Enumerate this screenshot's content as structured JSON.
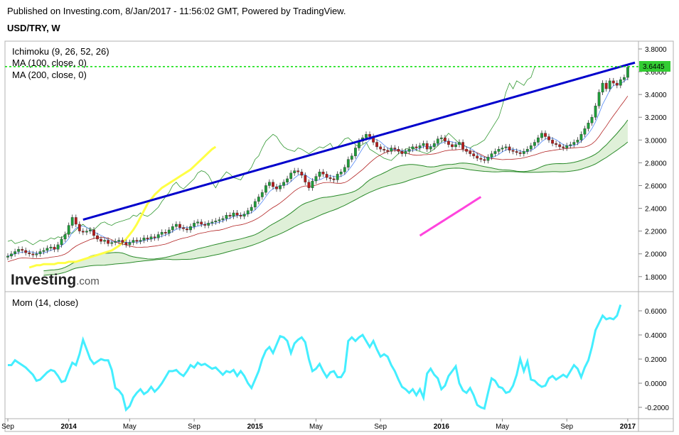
{
  "header": {
    "published": "Published on Investing.com, 8/Jan/2017 - 11:56:02 GMT, Powered by TradingView.",
    "symbol": "USD/TRY, W"
  },
  "watermark": {
    "brand": "Investing",
    "suffix": ".com"
  },
  "colors": {
    "trendline": "#0000cc",
    "ma100": "#ffff44",
    "ma200": "#ff44dd",
    "cloud_fill": "#dff0d8",
    "cloud_edge": "#2a8a2a",
    "tenkan": "#4f86f7",
    "kijun": "#b22222",
    "chikou": "#339933",
    "candle_up": "#1f9d3a",
    "candle_down": "#b81c1c",
    "momentum": "#44eeff",
    "last_price_line": "#00dd00"
  },
  "chart_data": [
    {
      "type": "candlestick",
      "title": "USD/TRY, W",
      "indicators": [
        "Ichimoku (9, 26, 52, 26)",
        "MA (100, close, 0)",
        "MA (200, close, 0)"
      ],
      "last_price": 3.6445,
      "last_price_label": "3.6445",
      "ylim": [
        1.7,
        3.85
      ],
      "yticks": [
        "3.8000",
        "3.6000",
        "3.4000",
        "3.2000",
        "3.0000",
        "2.8000",
        "2.6000",
        "2.4000",
        "2.2000",
        "2.0000",
        "1.8000"
      ],
      "ytick_values": [
        3.8,
        3.6,
        3.4,
        3.2,
        3.0,
        2.8,
        2.6,
        2.4,
        2.2,
        2.0,
        1.8
      ],
      "x_labels": [
        "Sep",
        "2014",
        "May",
        "Sep",
        "2015",
        "May",
        "Sep",
        "2016",
        "May",
        "Sep",
        "2017"
      ],
      "x_label_bold": [
        false,
        true,
        false,
        false,
        true,
        false,
        false,
        true,
        false,
        false,
        true
      ],
      "x_label_weeks": [
        0,
        17,
        34,
        52,
        69,
        86,
        104,
        121,
        138,
        156,
        173
      ],
      "close": [
        1.98,
        2.0,
        2.02,
        2.04,
        2.03,
        2.01,
        2.0,
        1.99,
        2.0,
        2.02,
        2.03,
        2.05,
        2.06,
        2.04,
        2.08,
        2.13,
        2.17,
        2.25,
        2.32,
        2.26,
        2.2,
        2.19,
        2.2,
        2.21,
        2.16,
        2.13,
        2.11,
        2.12,
        2.09,
        2.1,
        2.11,
        2.12,
        2.1,
        2.08,
        2.1,
        2.12,
        2.11,
        2.12,
        2.14,
        2.13,
        2.15,
        2.14,
        2.17,
        2.19,
        2.18,
        2.21,
        2.24,
        2.26,
        2.23,
        2.22,
        2.21,
        2.24,
        2.27,
        2.28,
        2.26,
        2.25,
        2.27,
        2.28,
        2.29,
        2.3,
        2.31,
        2.34,
        2.33,
        2.36,
        2.34,
        2.33,
        2.35,
        2.38,
        2.41,
        2.46,
        2.5,
        2.54,
        2.6,
        2.63,
        2.59,
        2.57,
        2.6,
        2.63,
        2.66,
        2.71,
        2.73,
        2.72,
        2.69,
        2.63,
        2.58,
        2.64,
        2.68,
        2.72,
        2.7,
        2.67,
        2.66,
        2.65,
        2.7,
        2.72,
        2.76,
        2.83,
        2.86,
        2.93,
        2.99,
        3.02,
        3.05,
        3.03,
        2.98,
        2.94,
        2.92,
        2.91,
        2.9,
        2.93,
        2.92,
        2.9,
        2.88,
        2.9,
        2.92,
        2.94,
        2.93,
        2.95,
        2.97,
        2.92,
        2.94,
        2.97,
        3.01,
        3.02,
        2.99,
        2.96,
        2.94,
        2.96,
        2.98,
        2.92,
        2.9,
        2.88,
        2.86,
        2.84,
        2.83,
        2.82,
        2.85,
        2.88,
        2.9,
        2.92,
        2.93,
        2.94,
        2.91,
        2.9,
        2.89,
        2.88,
        2.9,
        2.92,
        2.95,
        2.98,
        3.02,
        3.06,
        3.03,
        3.0,
        2.97,
        2.96,
        2.94,
        2.93,
        2.95,
        2.96,
        2.98,
        3.0,
        3.05,
        3.1,
        3.15,
        3.2,
        3.3,
        3.42,
        3.5,
        3.45,
        3.52,
        3.5,
        3.48,
        3.53,
        3.55,
        3.64
      ],
      "ma100": [
        1.88,
        1.89,
        1.9,
        1.9,
        1.91,
        1.91,
        1.91,
        1.91,
        1.92,
        1.92,
        1.92,
        1.93,
        1.93,
        1.93,
        1.94,
        1.95,
        1.96,
        1.97,
        1.98,
        1.99,
        2.0,
        2.01,
        2.02,
        2.03,
        2.05,
        2.07,
        2.1,
        2.13,
        2.17,
        2.21,
        2.26,
        2.32,
        2.38,
        2.44,
        2.48,
        2.52,
        2.55,
        2.58,
        2.6,
        2.62,
        2.64,
        2.66,
        2.68,
        2.7,
        2.72,
        2.74,
        2.77,
        2.8,
        2.83,
        2.86,
        2.89,
        2.92,
        2.94
      ],
      "ma100_start_week": 6,
      "ma200": [
        2.16,
        2.18,
        2.2,
        2.22,
        2.24,
        2.26,
        2.28,
        2.3,
        2.32,
        2.34,
        2.36,
        2.38,
        2.4,
        2.42,
        2.44,
        2.46,
        2.48,
        2.5
      ],
      "ma200_start_week": 115,
      "trendline": {
        "start_week": 21,
        "start_value": 2.3,
        "end_week": 175,
        "end_value": 3.68
      }
    },
    {
      "type": "line",
      "title": "Mom (14, close)",
      "ylim": [
        -0.24,
        0.7
      ],
      "yticks": [
        "0.6000",
        "0.4000",
        "0.2000",
        "0.0000",
        "-0.2000"
      ],
      "ytick_values": [
        0.6,
        0.4,
        0.2,
        0.0,
        -0.2
      ],
      "values": [
        0.15,
        0.15,
        0.19,
        0.17,
        0.15,
        0.13,
        0.1,
        0.07,
        0.02,
        0.03,
        0.06,
        0.09,
        0.11,
        0.1,
        0.06,
        0.01,
        0.02,
        0.1,
        0.17,
        0.15,
        0.24,
        0.36,
        0.28,
        0.2,
        0.16,
        0.18,
        0.2,
        0.19,
        0.19,
        0.11,
        -0.04,
        -0.06,
        -0.1,
        -0.22,
        -0.19,
        -0.12,
        -0.08,
        -0.05,
        -0.09,
        -0.07,
        -0.03,
        -0.07,
        -0.04,
        0.0,
        0.05,
        0.1,
        0.1,
        0.11,
        0.08,
        0.06,
        0.1,
        0.15,
        0.13,
        0.17,
        0.15,
        0.16,
        0.14,
        0.12,
        0.13,
        0.1,
        0.07,
        0.1,
        0.09,
        0.11,
        0.06,
        0.1,
        0.06,
        0.0,
        -0.04,
        0.03,
        0.1,
        0.2,
        0.27,
        0.3,
        0.25,
        0.32,
        0.39,
        0.38,
        0.35,
        0.25,
        0.33,
        0.36,
        0.38,
        0.34,
        0.2,
        0.1,
        0.12,
        0.16,
        0.1,
        0.05,
        0.09,
        0.1,
        0.05,
        0.05,
        0.1,
        0.35,
        0.38,
        0.35,
        0.38,
        0.4,
        0.35,
        0.3,
        0.35,
        0.28,
        0.22,
        0.24,
        0.22,
        0.15,
        0.1,
        0.03,
        -0.03,
        -0.05,
        -0.08,
        -0.05,
        -0.1,
        -0.05,
        -0.12,
        0.08,
        0.12,
        0.07,
        0.04,
        -0.05,
        -0.02,
        0.06,
        0.1,
        0.14,
        0.0,
        -0.06,
        -0.08,
        -0.04,
        -0.1,
        -0.18,
        -0.2,
        -0.21,
        -0.08,
        0.04,
        0.02,
        -0.03,
        -0.04,
        -0.08,
        -0.07,
        -0.02,
        0.07,
        0.2,
        0.1,
        0.18,
        0.03,
        0.02,
        -0.01,
        -0.03,
        -0.02,
        0.04,
        0.06,
        0.03,
        0.05,
        0.07,
        0.05,
        0.1,
        0.15,
        0.12,
        0.05,
        0.13,
        0.19,
        0.3,
        0.44,
        0.5,
        0.56,
        0.53,
        0.54,
        0.53,
        0.56,
        0.65
      ]
    }
  ]
}
